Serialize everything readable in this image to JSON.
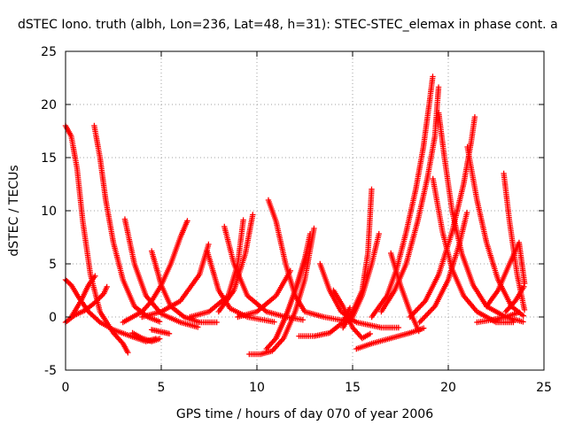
{
  "chart_data": {
    "type": "scatter",
    "title": "dSTEC Iono. truth (albh, Lon=236, Lat=48, h=31): STEC-STEC_elemax in phase cont. a",
    "xlabel": "GPS time / hours of day 070 of year 2006",
    "ylabel": "dSTEC  / TECUs",
    "xlim": [
      0,
      25
    ],
    "ylim": [
      -5,
      25
    ],
    "xticks": [
      0,
      5,
      10,
      15,
      20,
      25
    ],
    "yticks": [
      -5,
      0,
      5,
      10,
      15,
      20,
      25
    ],
    "grid": true,
    "marker": "plus",
    "color": "#ff0000",
    "series": [
      {
        "x": [
          0.0,
          0.3,
          0.6,
          0.9,
          1.3,
          1.8,
          2.5,
          3.0,
          3.3
        ],
        "y": [
          18.0,
          17.0,
          14.0,
          9.0,
          4.0,
          0.5,
          -1.5,
          -2.5,
          -3.5
        ]
      },
      {
        "x": [
          1.5,
          1.8,
          2.1,
          2.5,
          3.0,
          3.6,
          4.3,
          5.0
        ],
        "y": [
          18.0,
          15.0,
          11.0,
          7.0,
          3.5,
          1.0,
          0.0,
          -0.5
        ]
      },
      {
        "x": [
          0.0,
          0.3,
          0.7,
          1.2,
          1.8,
          2.5,
          3.4,
          4.2,
          4.8
        ],
        "y": [
          3.5,
          3.0,
          1.8,
          0.5,
          -0.5,
          -1.2,
          -1.8,
          -2.3,
          -2.0
        ]
      },
      {
        "x": [
          0.0,
          0.5,
          1.0,
          1.5,
          2.0,
          2.2
        ],
        "y": [
          -0.5,
          0.2,
          0.6,
          1.3,
          2.2,
          3.0
        ]
      },
      {
        "x": [
          0.3,
          0.8,
          1.2,
          1.6
        ],
        "y": [
          0.0,
          1.5,
          3.0,
          4.0
        ]
      },
      {
        "x": [
          3.1,
          3.6,
          4.2,
          5.0,
          6.0,
          7.0
        ],
        "y": [
          9.2,
          5.0,
          2.0,
          0.3,
          -0.5,
          -1.0
        ]
      },
      {
        "x": [
          4.5,
          5.0,
          5.5,
          6.2,
          7.0,
          8.0
        ],
        "y": [
          6.2,
          3.0,
          1.0,
          0.0,
          -0.5,
          -0.5
        ]
      },
      {
        "x": [
          3.5,
          4.0,
          4.5,
          5.0
        ],
        "y": [
          -1.5,
          -2.0,
          -2.3,
          -2.0
        ]
      },
      {
        "x": [
          4.5,
          5.0,
          5.5
        ],
        "y": [
          -1.2,
          -1.4,
          -1.6
        ]
      },
      {
        "x": [
          3.0,
          3.5,
          4.0,
          4.5,
          5.0,
          5.5,
          6.0,
          6.4
        ],
        "y": [
          -0.5,
          0.0,
          0.5,
          1.5,
          3.0,
          5.0,
          7.5,
          9.2
        ]
      },
      {
        "x": [
          4.0,
          5.0,
          6.0,
          7.0,
          7.5
        ],
        "y": [
          0.0,
          0.5,
          1.5,
          4.0,
          7.0
        ]
      },
      {
        "x": [
          7.4,
          8.0,
          8.6,
          9.5,
          11.0
        ],
        "y": [
          6.2,
          2.5,
          0.8,
          0.0,
          -0.5
        ]
      },
      {
        "x": [
          8.3,
          8.8,
          9.5,
          10.5,
          11.5,
          12.5
        ],
        "y": [
          8.5,
          5.0,
          2.0,
          0.5,
          0.0,
          -0.3
        ]
      },
      {
        "x": [
          6.5,
          7.5,
          8.5,
          9.0,
          9.3
        ],
        "y": [
          0.0,
          0.5,
          2.0,
          5.0,
          9.3
        ]
      },
      {
        "x": [
          8.0,
          8.8,
          9.4,
          9.8
        ],
        "y": [
          0.5,
          2.5,
          6.0,
          9.8
        ]
      },
      {
        "x": [
          10.6,
          11.0,
          11.5,
          12.0,
          12.5,
          13.5,
          15.0
        ],
        "y": [
          11.0,
          9.0,
          5.0,
          2.0,
          0.5,
          0.0,
          -0.5
        ]
      },
      {
        "x": [
          9.6,
          10.2,
          10.8,
          11.4,
          12.0,
          12.5,
          12.8,
          13.0
        ],
        "y": [
          -3.5,
          -3.5,
          -3.2,
          -2.0,
          0.5,
          3.5,
          6.5,
          8.5
        ]
      },
      {
        "x": [
          10.5,
          11.0,
          11.5,
          12.0,
          12.5,
          12.8
        ],
        "y": [
          -3.0,
          -2.0,
          0.0,
          2.5,
          5.5,
          8.0
        ]
      },
      {
        "x": [
          11.0,
          11.6,
          12.2,
          12.6
        ],
        "y": [
          -2.0,
          0.5,
          3.5,
          6.0
        ]
      },
      {
        "x": [
          9.0,
          10.0,
          11.0,
          11.8
        ],
        "y": [
          0.0,
          0.5,
          2.0,
          4.5
        ]
      },
      {
        "x": [
          12.2,
          13.0,
          13.8,
          14.5,
          14.9
        ],
        "y": [
          -1.8,
          -1.8,
          -1.5,
          -0.5,
          1.0
        ]
      },
      {
        "x": [
          13.3,
          13.8,
          14.4,
          15.2,
          16.5,
          17.5
        ],
        "y": [
          5.0,
          2.5,
          0.5,
          -0.5,
          -1.0,
          -1.0
        ]
      },
      {
        "x": [
          14.0,
          14.5,
          15.0,
          15.5,
          16.0
        ],
        "y": [
          2.5,
          1.0,
          -1.0,
          -2.0,
          -1.5
        ]
      },
      {
        "x": [
          15.2,
          16.0,
          17.0,
          18.0,
          18.8
        ],
        "y": [
          -3.0,
          -2.5,
          -2.0,
          -1.5,
          -1.0
        ]
      },
      {
        "x": [
          14.5,
          15.0,
          15.5,
          15.8,
          16.0
        ],
        "y": [
          -1.0,
          0.5,
          2.5,
          6.0,
          12.2
        ]
      },
      {
        "x": [
          15.0,
          15.5,
          16.0,
          16.4
        ],
        "y": [
          0.0,
          2.0,
          5.0,
          8.0
        ]
      },
      {
        "x": [
          16.0,
          16.8,
          17.3,
          17.8,
          18.3,
          18.7,
          19.0,
          19.2
        ],
        "y": [
          0.0,
          2.0,
          4.5,
          8.0,
          12.0,
          16.0,
          20.0,
          22.8
        ]
      },
      {
        "x": [
          16.5,
          17.2,
          17.8,
          18.4,
          18.9,
          19.3,
          19.5
        ],
        "y": [
          0.5,
          2.5,
          5.0,
          9.0,
          13.0,
          17.0,
          21.8
        ]
      },
      {
        "x": [
          17.0,
          17.5,
          18.0,
          18.5
        ],
        "y": [
          6.0,
          3.0,
          0.5,
          -1.5
        ]
      },
      {
        "x": [
          19.2,
          19.7,
          20.2,
          20.8,
          21.5,
          22.5,
          23.5
        ],
        "y": [
          13.0,
          8.0,
          4.5,
          2.0,
          0.5,
          -0.5,
          -0.5
        ]
      },
      {
        "x": [
          19.5,
          19.8,
          20.2,
          20.7,
          21.3,
          22.0,
          23.0,
          24.0
        ],
        "y": [
          19.2,
          15.0,
          10.0,
          6.0,
          3.0,
          1.0,
          0.0,
          -0.5
        ]
      },
      {
        "x": [
          18.0,
          18.8,
          19.5,
          20.2,
          20.8,
          21.2,
          21.4
        ],
        "y": [
          0.0,
          1.5,
          4.0,
          8.0,
          12.5,
          16.5,
          19.0
        ]
      },
      {
        "x": [
          18.5,
          19.3,
          20.0,
          20.6,
          21.0
        ],
        "y": [
          -0.5,
          1.0,
          3.5,
          7.0,
          10.0
        ]
      },
      {
        "x": [
          21.0,
          21.5,
          22.0,
          22.6,
          23.3,
          24.0
        ],
        "y": [
          16.0,
          11.0,
          7.0,
          3.5,
          1.0,
          0.0
        ]
      },
      {
        "x": [
          22.9,
          23.2,
          23.6,
          24.0
        ],
        "y": [
          13.5,
          9.0,
          4.0,
          0.5
        ]
      },
      {
        "x": [
          22.0,
          22.6,
          23.2,
          23.7,
          24.0
        ],
        "y": [
          1.0,
          2.5,
          5.0,
          7.0,
          3.0
        ]
      },
      {
        "x": [
          23.0,
          23.5,
          24.0
        ],
        "y": [
          0.5,
          1.5,
          3.0
        ]
      },
      {
        "x": [
          21.5,
          22.2,
          23.0,
          23.8
        ],
        "y": [
          -0.5,
          -0.3,
          0.0,
          0.5
        ]
      }
    ]
  }
}
